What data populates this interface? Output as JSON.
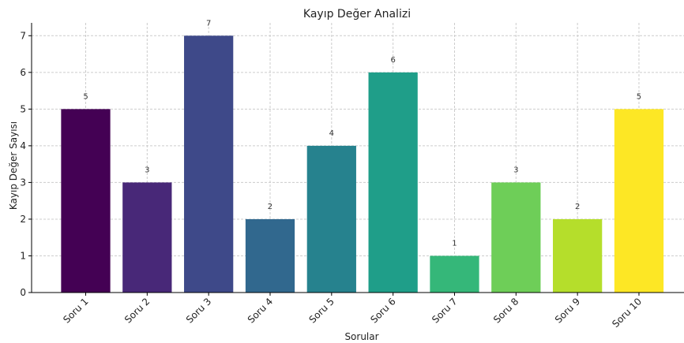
{
  "chart_data": {
    "type": "bar",
    "title": "Kayıp Değer Analizi",
    "xlabel": "Sorular",
    "ylabel": "Kayıp Değer Sayısı",
    "categories": [
      "Soru 1",
      "Soru 2",
      "Soru 3",
      "Soru 4",
      "Soru 5",
      "Soru 6",
      "Soru 7",
      "Soru 8",
      "Soru 9",
      "Soru 10"
    ],
    "values": [
      5,
      3,
      7,
      2,
      4,
      6,
      1,
      3,
      2,
      5
    ],
    "colors": [
      "#440154",
      "#482878",
      "#3e4989",
      "#31688e",
      "#26828e",
      "#1f9e89",
      "#35b779",
      "#6ece58",
      "#b5de2b",
      "#fde725"
    ],
    "yticks": [
      0,
      1,
      2,
      3,
      4,
      5,
      6,
      7
    ],
    "ylim": [
      0,
      7.35
    ],
    "grid": true,
    "data_labels": true
  }
}
